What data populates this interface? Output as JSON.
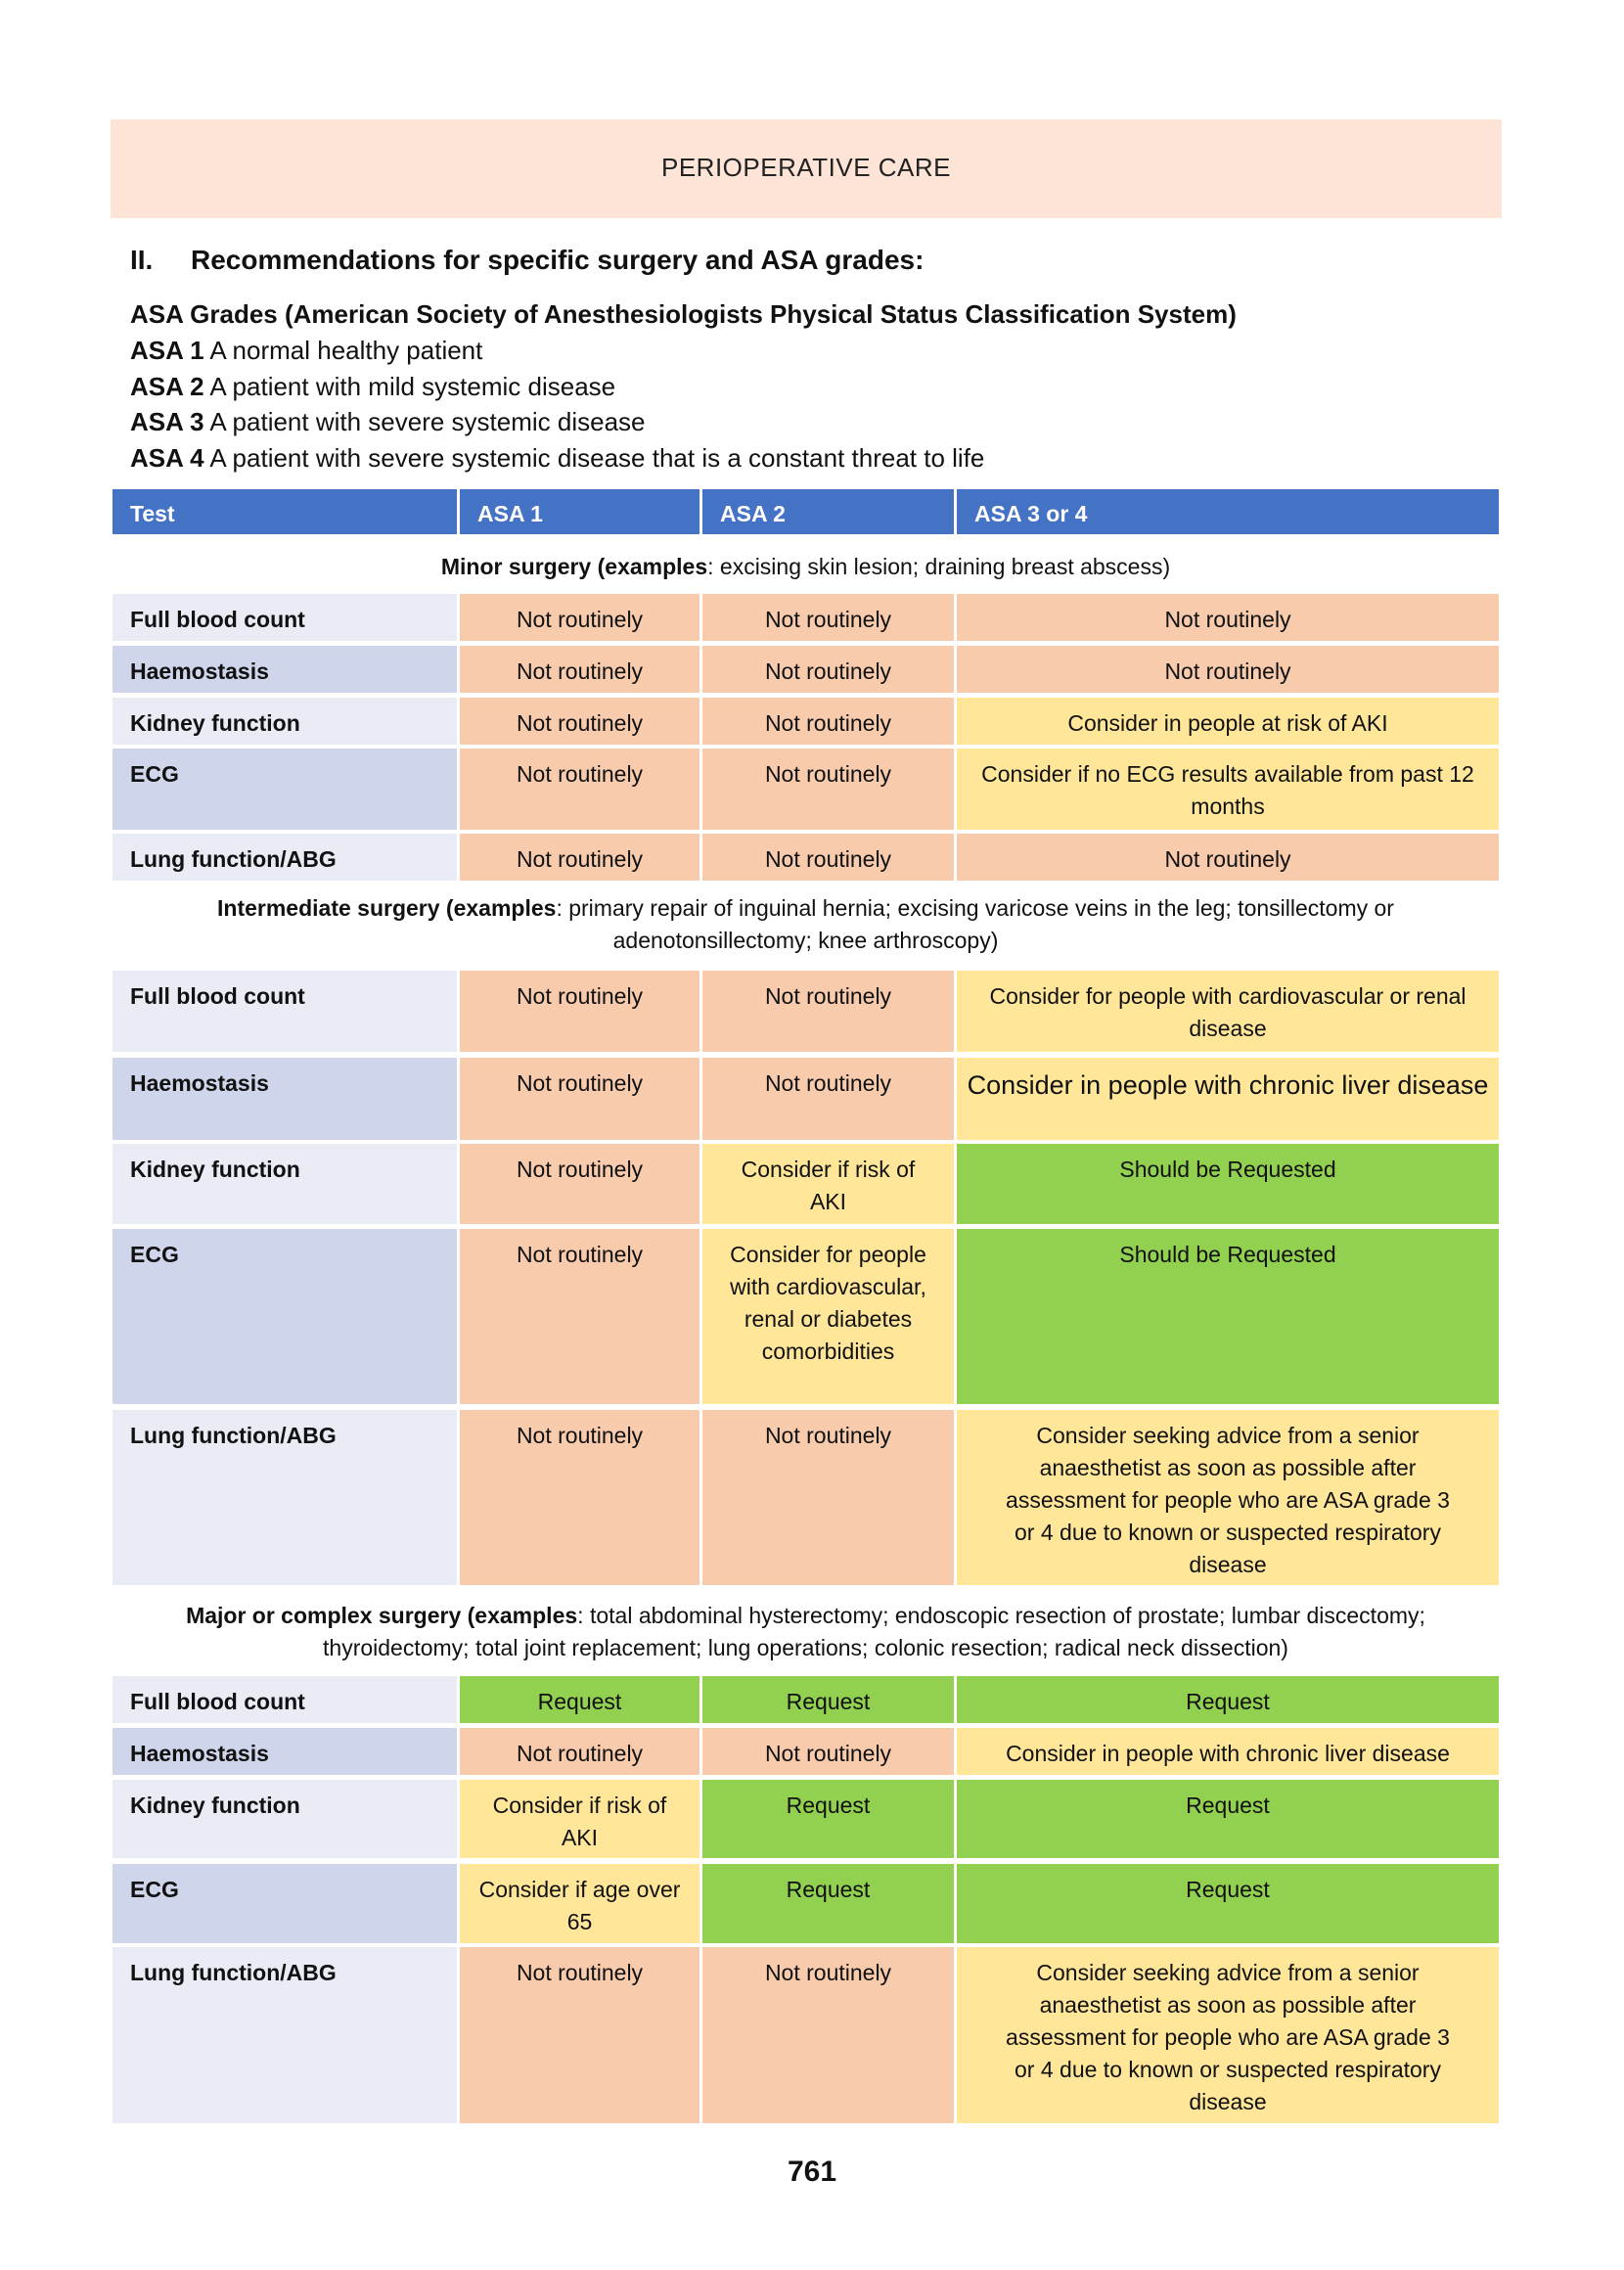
{
  "header": {
    "title": "PERIOPERATIVE CARE"
  },
  "section": {
    "number": "II.",
    "title": "Recommendations for specific surgery and ASA grades:"
  },
  "asa_info": {
    "heading": "ASA Grades (American Society of Anesthesiologists Physical Status Classification System)",
    "grades": [
      {
        "grade": "ASA 1",
        "desc": " A normal healthy patient"
      },
      {
        "grade": "ASA 2",
        "desc": " A patient with mild systemic disease"
      },
      {
        "grade": "ASA 3",
        "desc": " A patient with severe systemic disease"
      },
      {
        "grade": "ASA 4",
        "desc": " A patient with severe systemic disease that is a constant threat to life"
      }
    ]
  },
  "colors": {
    "header_band": "#fde4d7",
    "table_header": "#4472c4",
    "not_routinely": "#f8cbad",
    "consider": "#ffe699",
    "request": "#92d050"
  },
  "table": {
    "columns": [
      "Test",
      "ASA 1",
      "ASA 2",
      "ASA 3 or 4"
    ],
    "sections": [
      {
        "caption_bold": "Minor surgery (examples",
        "caption_rest": ": excising skin lesion; draining breast abscess)",
        "rows": [
          {
            "test": "Full blood count",
            "cells": [
              {
                "t": "Not routinely",
                "c": "peach"
              },
              {
                "t": "Not routinely",
                "c": "peach"
              },
              {
                "t": "Not routinely",
                "c": "peach"
              }
            ]
          },
          {
            "test": "Haemostasis",
            "cells": [
              {
                "t": "Not routinely",
                "c": "peach"
              },
              {
                "t": "Not routinely",
                "c": "peach"
              },
              {
                "t": "Not routinely",
                "c": "peach"
              }
            ]
          },
          {
            "test": "Kidney function",
            "cells": [
              {
                "t": "Not routinely",
                "c": "peach"
              },
              {
                "t": "Not routinely",
                "c": "peach"
              },
              {
                "t": "Consider in people at risk of AKI",
                "c": "yellow"
              }
            ]
          },
          {
            "test": "ECG",
            "cells": [
              {
                "t": "Not routinely",
                "c": "peach"
              },
              {
                "t": "Not routinely",
                "c": "peach"
              },
              {
                "t": "Consider if no ECG results available from past 12 months",
                "c": "yellow"
              }
            ]
          },
          {
            "test": "Lung function/ABG",
            "cells": [
              {
                "t": "Not routinely",
                "c": "peach"
              },
              {
                "t": "Not routinely",
                "c": "peach"
              },
              {
                "t": "Not routinely",
                "c": "peach"
              }
            ]
          }
        ]
      },
      {
        "caption_bold": "Intermediate surgery (examples",
        "caption_rest": ": primary repair of inguinal hernia; excising varicose veins in the leg; tonsillectomy or adenotonsillectomy; knee arthroscopy)",
        "rows": [
          {
            "test": "Full blood count",
            "cells": [
              {
                "t": "Not routinely",
                "c": "peach"
              },
              {
                "t": "Not routinely",
                "c": "peach"
              },
              {
                "t": "Consider for people with cardiovascular or renal disease",
                "c": "yellow"
              }
            ]
          },
          {
            "test": "Haemostasis",
            "cells": [
              {
                "t": "Not routinely",
                "c": "peach"
              },
              {
                "t": "Not routinely",
                "c": "peach"
              },
              {
                "t": "Consider in people with chronic liver disease",
                "c": "yellow",
                "big": true
              }
            ]
          },
          {
            "test": "Kidney function",
            "cells": [
              {
                "t": "Not routinely",
                "c": "peach"
              },
              {
                "t": "Consider if risk of AKI",
                "c": "yellow"
              },
              {
                "t": "Should be Requested",
                "c": "green"
              }
            ]
          },
          {
            "test": "ECG",
            "cells": [
              {
                "t": "Not routinely",
                "c": "peach"
              },
              {
                "t": "Consider for people with cardiovascular, renal or diabetes comorbidities",
                "c": "yellow"
              },
              {
                "t": "Should be Requested",
                "c": "green"
              }
            ]
          },
          {
            "test": "Lung function/ABG",
            "cells": [
              {
                "t": "Not routinely",
                "c": "peach"
              },
              {
                "t": "Not routinely",
                "c": "peach"
              },
              {
                "t": "Consider seeking advice from a senior anaesthetist as soon as possible after assessment for people who are ASA grade 3 or 4 due to known or suspected respiratory disease",
                "c": "yellow"
              }
            ]
          }
        ]
      },
      {
        "caption_bold": "Major or complex surgery (examples",
        "caption_rest": ": total abdominal hysterectomy; endoscopic resection of prostate; lumbar discectomy; thyroidectomy; total joint replacement; lung operations; colonic resection; radical neck dissection)",
        "rows": [
          {
            "test": "Full blood count",
            "cells": [
              {
                "t": "Request",
                "c": "green"
              },
              {
                "t": "Request",
                "c": "green"
              },
              {
                "t": "Request",
                "c": "green"
              }
            ]
          },
          {
            "test": "Haemostasis",
            "cells": [
              {
                "t": "Not routinely",
                "c": "peach"
              },
              {
                "t": "Not routinely",
                "c": "peach"
              },
              {
                "t": "Consider in people with chronic liver disease",
                "c": "yellow"
              }
            ]
          },
          {
            "test": "Kidney function",
            "cells": [
              {
                "t": "Consider if risk of AKI",
                "c": "yellow"
              },
              {
                "t": "Request",
                "c": "green"
              },
              {
                "t": "Request",
                "c": "green"
              }
            ]
          },
          {
            "test": "ECG",
            "cells": [
              {
                "t": "Consider if age over 65",
                "c": "yellow"
              },
              {
                "t": "Request",
                "c": "green"
              },
              {
                "t": "Request",
                "c": "green"
              }
            ]
          },
          {
            "test": "Lung function/ABG",
            "cells": [
              {
                "t": "Not routinely",
                "c": "peach"
              },
              {
                "t": "Not routinely",
                "c": "peach"
              },
              {
                "t": "Consider seeking advice from a senior anaesthetist as soon as possible after assessment for people who are ASA grade 3 or 4 due to known or suspected respiratory disease",
                "c": "yellow"
              }
            ]
          }
        ]
      }
    ]
  },
  "footer": {
    "page_number": "761"
  }
}
